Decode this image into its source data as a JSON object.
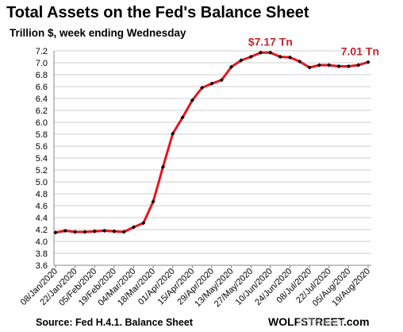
{
  "header": {
    "title": "Total Assets on the Fed's Balance Sheet",
    "subtitle": "Trillion $, week ending Wednesday"
  },
  "footer": {
    "source": "Source: Fed H.4.1. Balance Sheet",
    "brand": "WOLFSTREET.com",
    "watermark": "回顶财经APP"
  },
  "colors": {
    "line": "#e8141c",
    "marker": "#000000",
    "annotation": "#c0282d",
    "grid": "#cfcfcf"
  },
  "chart_data": {
    "type": "line",
    "title": "Total Assets on the Fed's Balance Sheet",
    "subtitle": "Trillion $, week ending Wednesday",
    "ylim": [
      3.6,
      7.2
    ],
    "yticks": [
      "3.6",
      "3.8",
      "4.0",
      "4.2",
      "4.4",
      "4.6",
      "4.8",
      "5.0",
      "5.2",
      "5.4",
      "5.6",
      "5.8",
      "6.0",
      "6.2",
      "6.4",
      "6.6",
      "6.8",
      "7.0",
      "7.2"
    ],
    "grid": "horizontal",
    "x_tick_labels": [
      "08/Jan/2020",
      "22/Jan/2020",
      "05/Feb/2020",
      "19/Feb/2020",
      "04/Mar/2020",
      "18/Mar/2020",
      "01/Apr/2020",
      "15/Apr/2020",
      "29/Apr/2020",
      "13/May/2020",
      "27/May/2020",
      "10/Jun/2020",
      "24/Jun/2020",
      "08/Jul/2020",
      "22/Jul/2020",
      "05/Aug/2020",
      "19/Aug/2020"
    ],
    "x": [
      "08/Jan/2020",
      "15/Jan/2020",
      "22/Jan/2020",
      "29/Jan/2020",
      "05/Feb/2020",
      "12/Feb/2020",
      "19/Feb/2020",
      "26/Feb/2020",
      "04/Mar/2020",
      "11/Mar/2020",
      "18/Mar/2020",
      "25/Mar/2020",
      "01/Apr/2020",
      "08/Apr/2020",
      "15/Apr/2020",
      "22/Apr/2020",
      "29/Apr/2020",
      "06/May/2020",
      "13/May/2020",
      "20/May/2020",
      "27/May/2020",
      "03/Jun/2020",
      "10/Jun/2020",
      "17/Jun/2020",
      "24/Jun/2020",
      "01/Jul/2020",
      "08/Jul/2020",
      "15/Jul/2020",
      "22/Jul/2020",
      "29/Jul/2020",
      "05/Aug/2020",
      "12/Aug/2020",
      "19/Aug/2020"
    ],
    "values": [
      4.15,
      4.18,
      4.16,
      4.16,
      4.17,
      4.18,
      4.17,
      4.16,
      4.24,
      4.31,
      4.67,
      5.25,
      5.81,
      6.08,
      6.37,
      6.58,
      6.65,
      6.71,
      6.93,
      7.04,
      7.1,
      7.17,
      7.17,
      7.1,
      7.09,
      7.02,
      6.92,
      6.96,
      6.96,
      6.94,
      6.94,
      6.96,
      7.01
    ],
    "annotations": [
      {
        "text": "$7.17 Tn",
        "at": "10/Jun/2020",
        "value": 7.17
      },
      {
        "text": "7.01 Tn",
        "at": "19/Aug/2020",
        "value": 7.01
      }
    ]
  }
}
